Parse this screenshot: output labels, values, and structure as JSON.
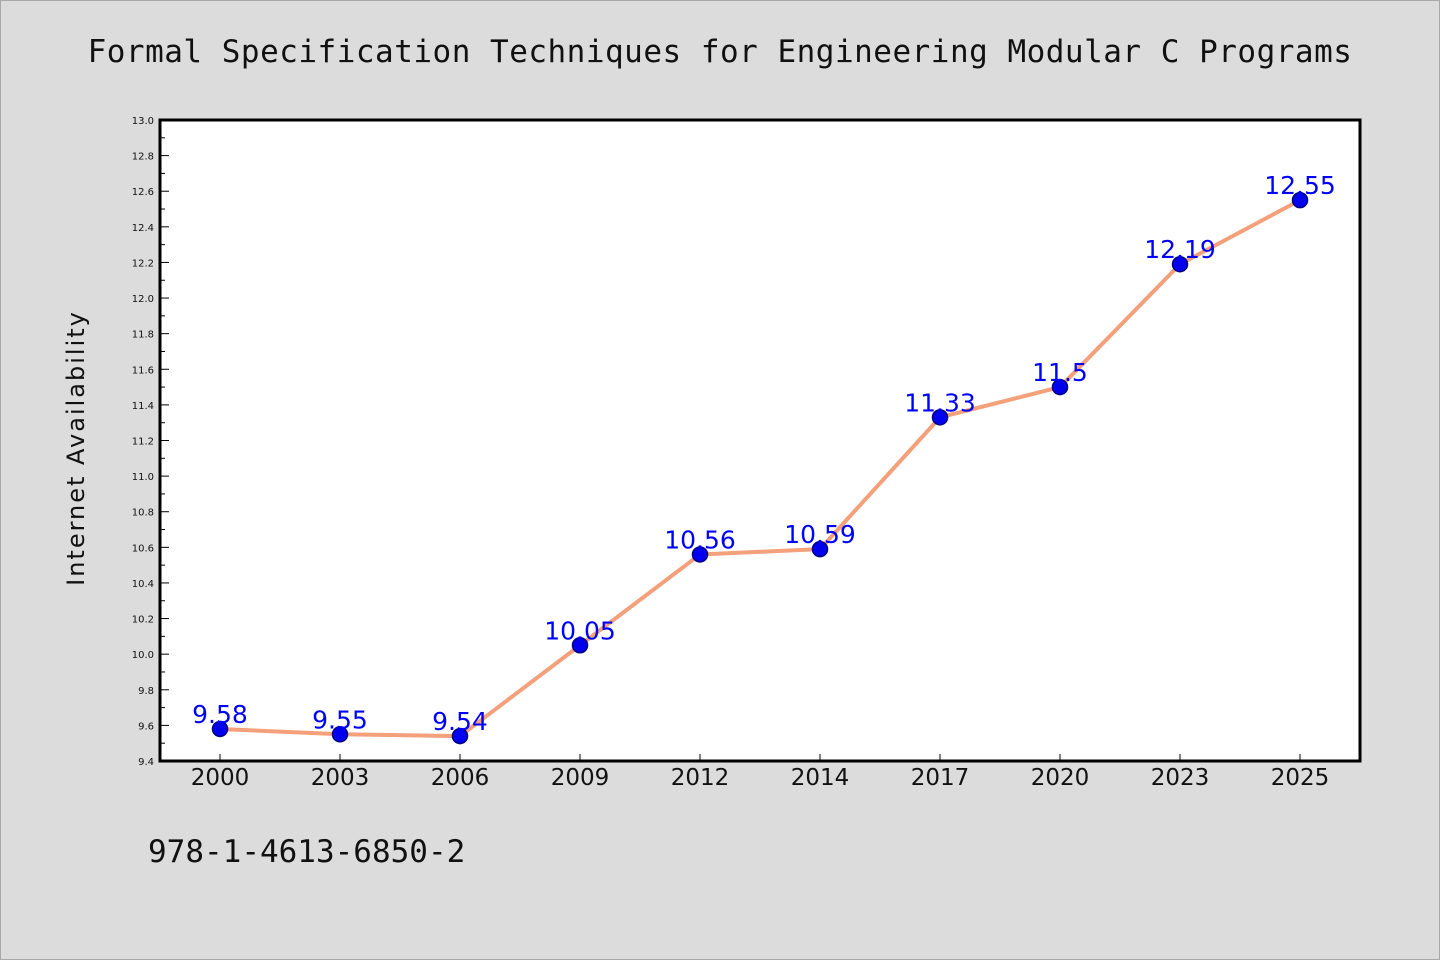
{
  "chart_data": {
    "type": "line",
    "title": "Formal Specification Techniques for Engineering Modular C Programs",
    "xlabel": "",
    "ylabel": "Internet Availability",
    "categories": [
      "2000",
      "2003",
      "2006",
      "2009",
      "2012",
      "2014",
      "2017",
      "2020",
      "2023",
      "2025"
    ],
    "values": [
      9.58,
      9.55,
      9.54,
      10.05,
      10.56,
      10.59,
      11.33,
      11.5,
      12.19,
      12.55
    ],
    "data_labels": [
      "9.58",
      "9.55",
      "9.54",
      "10.05",
      "10.56",
      "10.59",
      "11.33",
      "11.5",
      "12.19",
      "12.55"
    ],
    "ylim": [
      9.4,
      13.0
    ],
    "yticks": [
      "9.4",
      "9.6",
      "9.8",
      "10.0",
      "10.2",
      "10.4",
      "10.6",
      "10.8",
      "11.0",
      "11.2",
      "11.4",
      "11.6",
      "11.8",
      "12.0",
      "12.2",
      "12.4",
      "12.6",
      "12.8",
      "13.0"
    ],
    "grid": false,
    "legend": "none",
    "colors": {
      "line": "#f4a07a",
      "marker_fill": "#0000ee",
      "marker_edge": "#000080",
      "data_label": "#0000ff",
      "plot_background": "#ffffff",
      "page_background": "#dcdcdc"
    }
  },
  "annotation": {
    "isbn": "978-1-4613-6850-2"
  }
}
